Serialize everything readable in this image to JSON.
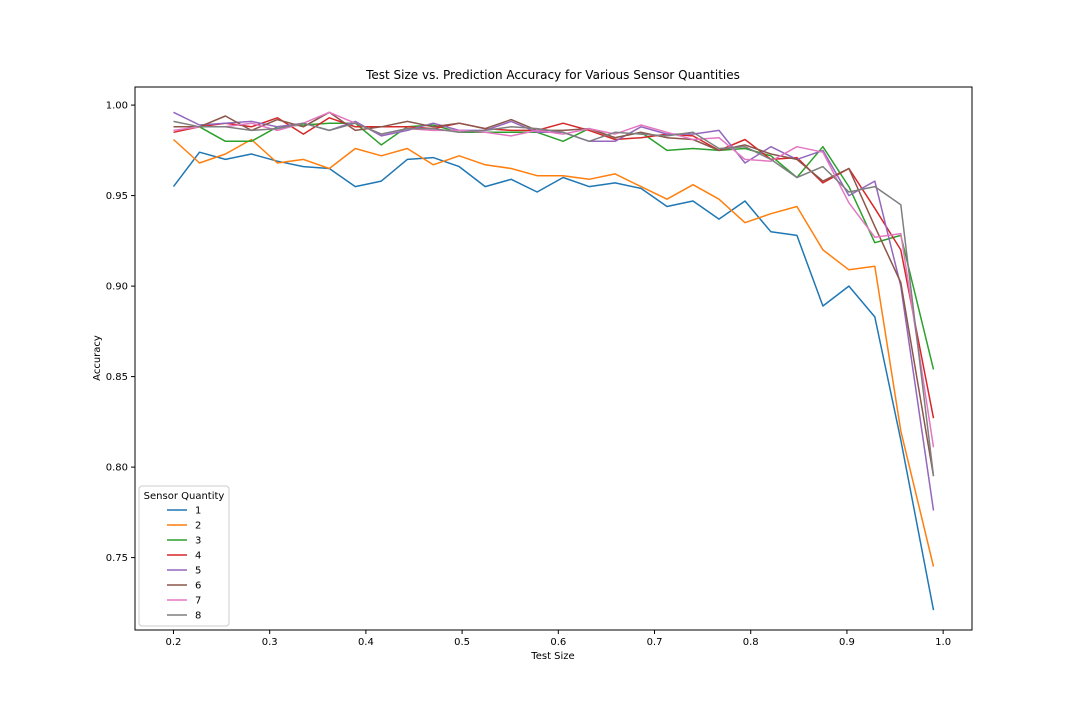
{
  "chart_data": {
    "type": "line",
    "title": "Test Size vs. Prediction Accuracy for Various Sensor Quantities",
    "xlabel": "Test Size",
    "ylabel": "Accuracy",
    "xlim": [
      0.16,
      1.03
    ],
    "ylim": [
      0.71,
      1.01
    ],
    "xticks": [
      "0.2",
      "0.3",
      "0.4",
      "0.5",
      "0.6",
      "0.7",
      "0.8",
      "0.9",
      "1.0"
    ],
    "yticks": [
      "0.75",
      "0.80",
      "0.85",
      "0.90",
      "0.95",
      "1.00"
    ],
    "grid": false,
    "legend": {
      "title": "Sensor Quantity",
      "position": "lower-left"
    },
    "x": [
      0.2,
      0.227,
      0.254,
      0.281,
      0.308,
      0.335,
      0.362,
      0.389,
      0.416,
      0.443,
      0.47,
      0.497,
      0.524,
      0.551,
      0.578,
      0.605,
      0.632,
      0.659,
      0.686,
      0.713,
      0.74,
      0.767,
      0.794,
      0.821,
      0.848,
      0.875,
      0.902,
      0.929,
      0.956,
      0.99
    ],
    "series": [
      {
        "name": "1",
        "color": "#1f77b4",
        "values": [
          0.955,
          0.974,
          0.97,
          0.973,
          0.969,
          0.966,
          0.965,
          0.955,
          0.958,
          0.97,
          0.971,
          0.966,
          0.955,
          0.959,
          0.952,
          0.96,
          0.955,
          0.957,
          0.954,
          0.944,
          0.947,
          0.937,
          0.947,
          0.93,
          0.928,
          0.889,
          0.9,
          0.883,
          0.815,
          0.721
        ]
      },
      {
        "name": "2",
        "color": "#ff7f0e",
        "values": [
          0.981,
          0.968,
          0.973,
          0.981,
          0.968,
          0.97,
          0.965,
          0.976,
          0.972,
          0.976,
          0.967,
          0.972,
          0.967,
          0.965,
          0.961,
          0.961,
          0.959,
          0.962,
          0.955,
          0.948,
          0.956,
          0.948,
          0.935,
          0.94,
          0.944,
          0.92,
          0.909,
          0.911,
          0.82,
          0.745
        ]
      },
      {
        "name": "3",
        "color": "#2ca02c",
        "values": [
          0.988,
          0.988,
          0.98,
          0.98,
          0.988,
          0.989,
          0.99,
          0.99,
          0.978,
          0.988,
          0.989,
          0.985,
          0.985,
          0.985,
          0.985,
          0.98,
          0.987,
          0.982,
          0.985,
          0.975,
          0.976,
          0.975,
          0.976,
          0.972,
          0.96,
          0.977,
          0.955,
          0.924,
          0.928,
          0.854
        ]
      },
      {
        "name": "4",
        "color": "#d62728",
        "values": [
          0.985,
          0.988,
          0.99,
          0.988,
          0.993,
          0.984,
          0.993,
          0.988,
          0.988,
          0.988,
          0.987,
          0.99,
          0.987,
          0.986,
          0.986,
          0.99,
          0.986,
          0.981,
          0.982,
          0.984,
          0.983,
          0.975,
          0.981,
          0.97,
          0.971,
          0.957,
          0.965,
          0.943,
          0.92,
          0.827
        ]
      },
      {
        "name": "5",
        "color": "#9467bd",
        "values": [
          0.996,
          0.989,
          0.99,
          0.991,
          0.988,
          0.99,
          0.986,
          0.991,
          0.983,
          0.986,
          0.99,
          0.986,
          0.986,
          0.991,
          0.985,
          0.985,
          0.98,
          0.98,
          0.988,
          0.984,
          0.984,
          0.986,
          0.968,
          0.977,
          0.97,
          0.975,
          0.95,
          0.958,
          0.9,
          0.776
        ]
      },
      {
        "name": "6",
        "color": "#8c564b",
        "values": [
          0.988,
          0.988,
          0.994,
          0.986,
          0.992,
          0.988,
          0.996,
          0.986,
          0.988,
          0.991,
          0.988,
          0.99,
          0.987,
          0.992,
          0.986,
          0.986,
          0.987,
          0.982,
          0.985,
          0.982,
          0.981,
          0.975,
          0.978,
          0.973,
          0.97,
          0.958,
          0.965,
          0.933,
          0.902,
          0.795
        ]
      },
      {
        "name": "7",
        "color": "#e377c2",
        "values": [
          0.986,
          0.988,
          0.988,
          0.99,
          0.986,
          0.99,
          0.996,
          0.99,
          0.984,
          0.987,
          0.986,
          0.986,
          0.985,
          0.983,
          0.986,
          0.984,
          0.987,
          0.984,
          0.989,
          0.985,
          0.981,
          0.982,
          0.97,
          0.969,
          0.977,
          0.974,
          0.946,
          0.927,
          0.929,
          0.811
        ]
      },
      {
        "name": "8",
        "color": "#7f7f7f",
        "values": [
          0.991,
          0.988,
          0.988,
          0.986,
          0.987,
          0.99,
          0.986,
          0.99,
          0.984,
          0.987,
          0.987,
          0.985,
          0.986,
          0.988,
          0.987,
          0.985,
          0.98,
          0.985,
          0.984,
          0.983,
          0.985,
          0.976,
          0.977,
          0.97,
          0.96,
          0.966,
          0.952,
          0.955,
          0.945,
          0.795
        ]
      }
    ]
  }
}
